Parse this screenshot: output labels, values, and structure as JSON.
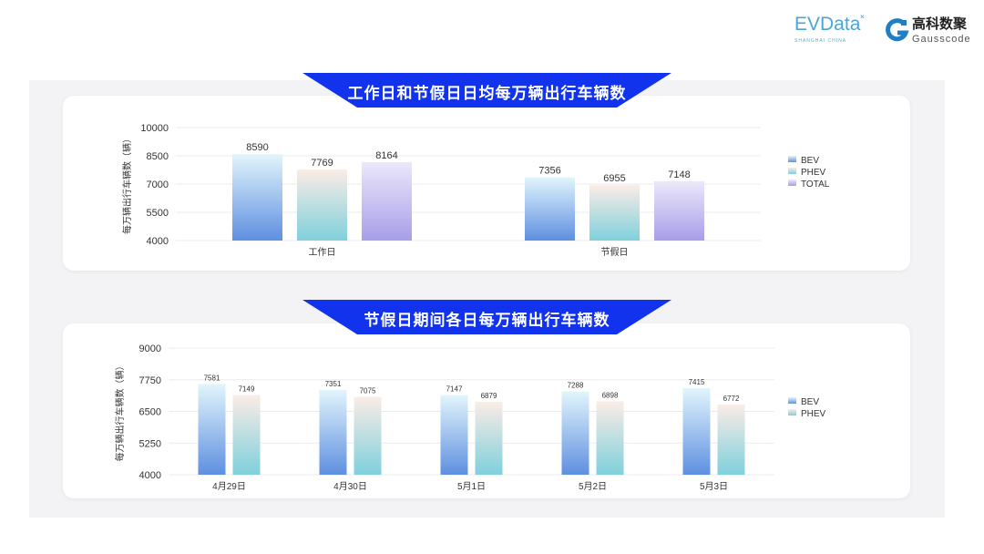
{
  "header": {
    "logo_evdata": "EVData",
    "logo_evdata_sub": "SHANGHAI CHINA",
    "logo_gauss_cn": "高科数聚",
    "logo_gauss_en": "Gausscode"
  },
  "colors": {
    "banner": "#1133ee",
    "BEV": [
      "#e2f5fc",
      "#5e8fe0"
    ],
    "PHEV": [
      "#fbece6",
      "#7fd0dc"
    ],
    "TOTAL": [
      "#ece8fb",
      "#a79ee8"
    ]
  },
  "chart_data": [
    {
      "type": "bar",
      "title": "工作日和节假日日均每万辆出行车辆数",
      "ylabel": "每万辆出行车辆数（辆）",
      "xlabel": "",
      "ylim": [
        4000,
        10000
      ],
      "yticks": [
        "10000",
        "8500",
        "7000",
        "5500",
        "4000"
      ],
      "categories": [
        "工作日",
        "节假日"
      ],
      "series": [
        {
          "name": "BEV",
          "values": [
            8590,
            7356
          ]
        },
        {
          "name": "PHEV",
          "values": [
            7769,
            6955
          ]
        },
        {
          "name": "TOTAL",
          "values": [
            8164,
            7148
          ]
        }
      ],
      "legend": "right",
      "grid": true
    },
    {
      "type": "bar",
      "title": "节假日期间各日每万辆出行车辆数",
      "ylabel": "每万辆出行车辆数（辆）",
      "xlabel": "",
      "ylim": [
        4000,
        9000
      ],
      "yticks": [
        "9000",
        "7750",
        "6500",
        "5250",
        "4000"
      ],
      "categories": [
        "4月29日",
        "4月30日",
        "5月1日",
        "5月2日",
        "5月3日"
      ],
      "series": [
        {
          "name": "BEV",
          "values": [
            7581,
            7351,
            7147,
            7288,
            7415
          ]
        },
        {
          "name": "PHEV",
          "values": [
            7149,
            7075,
            6879,
            6898,
            6772
          ]
        }
      ],
      "legend": "right",
      "grid": true
    }
  ]
}
